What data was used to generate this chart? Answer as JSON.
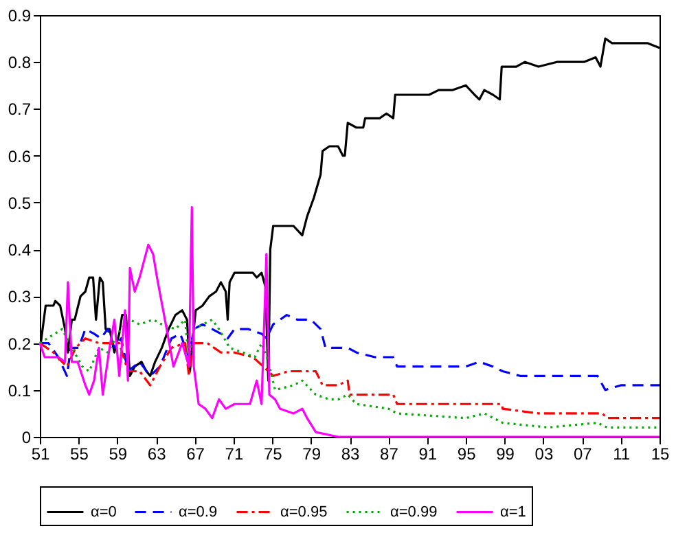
{
  "chart_data": {
    "type": "line",
    "xlim": [
      1951,
      2015
    ],
    "xticks": [
      {
        "value": 1951,
        "label": "51"
      },
      {
        "value": 1955,
        "label": "55"
      },
      {
        "value": 1959,
        "label": "59"
      },
      {
        "value": 1963,
        "label": "63"
      },
      {
        "value": 1967,
        "label": "67"
      },
      {
        "value": 1971,
        "label": "71"
      },
      {
        "value": 1975,
        "label": "75"
      },
      {
        "value": 1979,
        "label": "79"
      },
      {
        "value": 1983,
        "label": "83"
      },
      {
        "value": 1987,
        "label": "87"
      },
      {
        "value": 1991,
        "label": "91"
      },
      {
        "value": 1995,
        "label": "95"
      },
      {
        "value": 1999,
        "label": "99"
      },
      {
        "value": 2003,
        "label": "03"
      },
      {
        "value": 2007,
        "label": "07"
      },
      {
        "value": 2011,
        "label": "11"
      },
      {
        "value": 2015,
        "label": "15"
      }
    ],
    "ylim": [
      0,
      0.9
    ],
    "yticks": [
      0,
      0.1,
      0.2,
      0.3,
      0.4,
      0.5,
      0.6,
      0.7,
      0.8,
      0.9
    ],
    "grid": false,
    "legend": "bottom",
    "series": [
      {
        "name": "α=0",
        "color": "#000000",
        "line_style": "solid",
        "x": [
          1951,
          1951.1,
          1951.6,
          1952.4,
          1952.6,
          1953.1,
          1953.6,
          1953.9,
          1954.3,
          1954.6,
          1955.2,
          1955.7,
          1956.1,
          1956.5,
          1956.8,
          1957.2,
          1957.5,
          1957.8,
          1958.2,
          1958.7,
          1959.2,
          1959.5,
          1959.9,
          1960.3,
          1960.8,
          1961.5,
          1962,
          1962.4,
          1962.9,
          1963.6,
          1964.3,
          1965,
          1965.7,
          1966.2,
          1966.5,
          1966.8,
          1967.1,
          1967.8,
          1968.5,
          1969.2,
          1969.7,
          1970.2,
          1970.4,
          1970.6,
          1971.1,
          1972,
          1973,
          1973.4,
          1973.9,
          1974.3,
          1974.6,
          1974.8,
          1975.1,
          1976.2,
          1977.2,
          1978.1,
          1978.6,
          1979.3,
          1980,
          1980.2,
          1980.9,
          1981.8,
          1982.3,
          1982.5,
          1982.8,
          1983.7,
          1984.4,
          1984.6,
          1986.1,
          1986.8,
          1987.5,
          1987.7,
          1989.4,
          1991.2,
          1992.2,
          1993.6,
          1995,
          1995.9,
          1996.4,
          1996.9,
          1997.8,
          1998.5,
          1998.7,
          2000.2,
          2001.1,
          2002.5,
          2004.4,
          2007.2,
          2008.4,
          2008.9,
          2009.4,
          2010.1,
          2011.9,
          2013.8,
          2015
        ],
        "values": [
          0.2,
          0.2,
          0.28,
          0.28,
          0.29,
          0.28,
          0.23,
          0.18,
          0.25,
          0.25,
          0.3,
          0.31,
          0.34,
          0.34,
          0.25,
          0.34,
          0.33,
          0.23,
          0.23,
          0.18,
          0.22,
          0.26,
          0.26,
          0.13,
          0.15,
          0.16,
          0.14,
          0.13,
          0.16,
          0.19,
          0.23,
          0.26,
          0.27,
          0.25,
          0.14,
          0.21,
          0.27,
          0.28,
          0.3,
          0.31,
          0.33,
          0.31,
          0.25,
          0.33,
          0.35,
          0.35,
          0.35,
          0.34,
          0.35,
          0.32,
          0.12,
          0.4,
          0.45,
          0.45,
          0.45,
          0.43,
          0.47,
          0.51,
          0.56,
          0.61,
          0.62,
          0.62,
          0.6,
          0.6,
          0.67,
          0.66,
          0.66,
          0.68,
          0.68,
          0.69,
          0.68,
          0.73,
          0.73,
          0.73,
          0.74,
          0.74,
          0.75,
          0.73,
          0.72,
          0.74,
          0.73,
          0.72,
          0.79,
          0.79,
          0.8,
          0.79,
          0.8,
          0.8,
          0.81,
          0.79,
          0.85,
          0.84,
          0.84,
          0.84,
          0.83
        ]
      },
      {
        "name": "α=0.9",
        "color": "#0000ff",
        "line_style": "dashed",
        "x": [
          1951,
          1951.9,
          1952.9,
          1953.8,
          1954.2,
          1955,
          1955.7,
          1956.6,
          1957.3,
          1958,
          1958.7,
          1959.4,
          1960.1,
          1961.3,
          1962.4,
          1963.4,
          1964.6,
          1965.5,
          1966.4,
          1966.9,
          1967.8,
          1968.8,
          1969.7,
          1970.4,
          1971.1,
          1972.5,
          1973.9,
          1974.4,
          1975.1,
          1976.5,
          1977.6,
          1979,
          1980,
          1980.5,
          1981.8,
          1982.8,
          1983.7,
          1985.6,
          1987.5,
          1987.9,
          1990.3,
          1995,
          1996.4,
          1997.8,
          1998.8,
          2000.6,
          2003.5,
          2008.6,
          2009.4,
          2011,
          2012.9,
          2015
        ],
        "values": [
          0.2,
          0.2,
          0.17,
          0.13,
          0.19,
          0.19,
          0.23,
          0.22,
          0.21,
          0.23,
          0.19,
          0.21,
          0.14,
          0.16,
          0.13,
          0.15,
          0.21,
          0.22,
          0.17,
          0.23,
          0.24,
          0.23,
          0.22,
          0.21,
          0.23,
          0.23,
          0.22,
          0.21,
          0.24,
          0.26,
          0.25,
          0.25,
          0.23,
          0.19,
          0.19,
          0.19,
          0.18,
          0.17,
          0.17,
          0.15,
          0.15,
          0.15,
          0.16,
          0.15,
          0.14,
          0.13,
          0.13,
          0.13,
          0.1,
          0.11,
          0.11,
          0.11
        ]
      },
      {
        "name": "α=0.95",
        "color": "#ff0000",
        "line_style": "dashdot",
        "x": [
          1951,
          1952.4,
          1953.3,
          1953.8,
          1954.7,
          1955.7,
          1957.1,
          1958.2,
          1959.2,
          1960.1,
          1961.3,
          1962.4,
          1963.4,
          1964.6,
          1966,
          1966.4,
          1966.9,
          1968.3,
          1969.7,
          1971.1,
          1973,
          1974.1,
          1975.1,
          1976.7,
          1978.1,
          1979.5,
          1980.2,
          1981.8,
          1982.8,
          1983,
          1985.1,
          1987.5,
          1987.9,
          1991.7,
          1995,
          1996.4,
          1998.7,
          1998.8,
          2002.5,
          2009.1,
          2009.6,
          2015
        ],
        "values": [
          0.2,
          0.18,
          0.16,
          0.15,
          0.19,
          0.21,
          0.2,
          0.2,
          0.2,
          0.14,
          0.14,
          0.11,
          0.15,
          0.19,
          0.2,
          0.13,
          0.2,
          0.2,
          0.18,
          0.18,
          0.17,
          0.15,
          0.13,
          0.14,
          0.14,
          0.14,
          0.11,
          0.11,
          0.12,
          0.09,
          0.09,
          0.09,
          0.07,
          0.07,
          0.07,
          0.07,
          0.07,
          0.06,
          0.05,
          0.05,
          0.04,
          0.04
        ]
      },
      {
        "name": "α=0.99",
        "color": "#00aa00",
        "line_style": "dotted",
        "x": [
          1951,
          1953.3,
          1954.3,
          1955.4,
          1956.1,
          1957.1,
          1958,
          1959.4,
          1960.3,
          1961.3,
          1962.7,
          1963.6,
          1965,
          1966,
          1966.4,
          1966.9,
          1968.8,
          1969.5,
          1970.6,
          1972,
          1973.2,
          1973.9,
          1974.6,
          1975.3,
          1977.2,
          1978.1,
          1979.5,
          1980.9,
          1981.8,
          1982.8,
          1983.7,
          1987,
          1987.9,
          1995,
          1996.9,
          1998.8,
          2003.5,
          2008.6,
          2009.6,
          2015
        ],
        "values": [
          0.2,
          0.23,
          0.19,
          0.15,
          0.14,
          0.19,
          0.18,
          0.23,
          0.25,
          0.24,
          0.25,
          0.24,
          0.23,
          0.25,
          0.16,
          0.23,
          0.25,
          0.23,
          0.19,
          0.18,
          0.17,
          0.2,
          0.16,
          0.1,
          0.11,
          0.12,
          0.09,
          0.08,
          0.08,
          0.09,
          0.07,
          0.06,
          0.05,
          0.04,
          0.05,
          0.03,
          0.02,
          0.03,
          0.02,
          0.02
        ]
      },
      {
        "name": "α=1",
        "color": "#ff00ff",
        "line_style": "solid",
        "x": [
          1951,
          1951.5,
          1952.9,
          1953.6,
          1953.9,
          1954.3,
          1954.9,
          1955.7,
          1956.1,
          1956.6,
          1957.1,
          1957.5,
          1958.2,
          1958.7,
          1959.2,
          1959.8,
          1960.1,
          1960.3,
          1960.8,
          1961.3,
          1962.2,
          1962.7,
          1963.1,
          1964.1,
          1964.8,
          1965.7,
          1966.4,
          1966.7,
          1966.9,
          1967.4,
          1968.1,
          1968.8,
          1969.5,
          1970.2,
          1971.1,
          1972.7,
          1973.4,
          1973.9,
          1974.4,
          1974.7,
          1975.3,
          1975.8,
          1977.2,
          1978.1,
          1978.6,
          1979.5,
          1981.8,
          2015
        ],
        "values": [
          0.2,
          0.17,
          0.17,
          0.16,
          0.33,
          0.16,
          0.16,
          0.11,
          0.09,
          0.12,
          0.19,
          0.09,
          0.19,
          0.25,
          0.13,
          0.27,
          0.12,
          0.36,
          0.31,
          0.34,
          0.41,
          0.39,
          0.34,
          0.23,
          0.15,
          0.2,
          0.15,
          0.49,
          0.15,
          0.07,
          0.06,
          0.04,
          0.08,
          0.06,
          0.07,
          0.07,
          0.12,
          0.07,
          0.39,
          0.09,
          0.08,
          0.06,
          0.05,
          0.06,
          0.04,
          0.01,
          0,
          0
        ]
      }
    ]
  }
}
